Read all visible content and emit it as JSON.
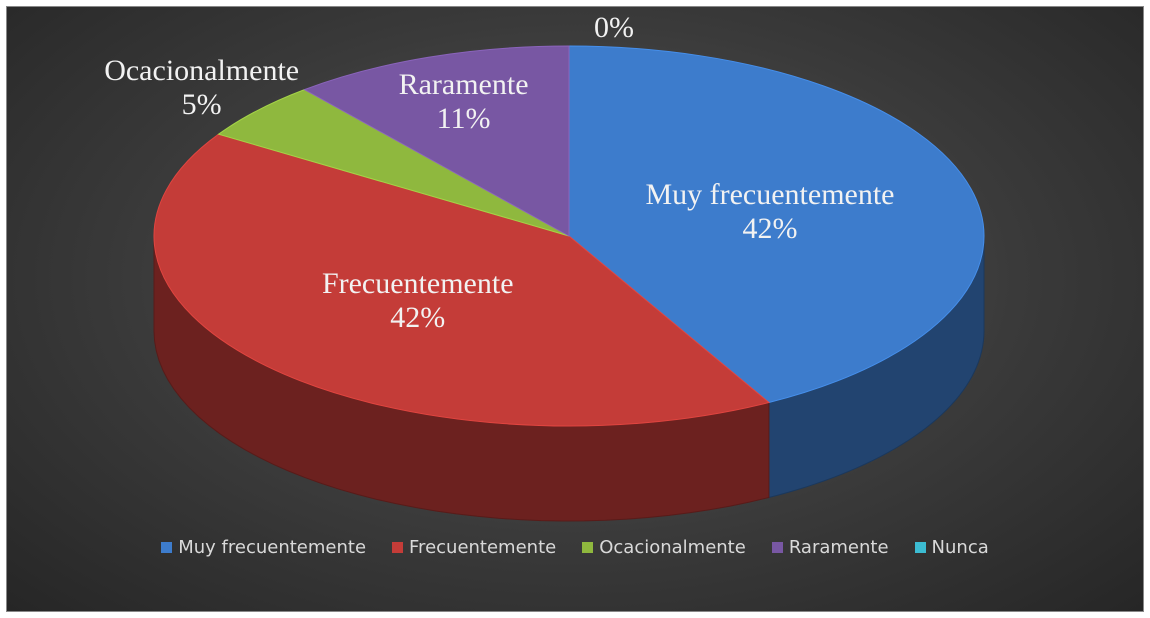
{
  "chart_data": {
    "type": "pie",
    "categories": [
      "Muy frecuentemente",
      "Frecuentemente",
      "Ocacionalmente",
      "Raramente",
      "Nunca"
    ],
    "values": [
      42,
      42,
      5,
      11,
      0
    ],
    "value_labels": [
      "42%",
      "42%",
      "5%",
      "11%",
      "0%"
    ],
    "colors": [
      "#3d7ccc",
      "#c43c38",
      "#8fb83e",
      "#7857a3",
      "#3cbcd2"
    ],
    "legend": "bottom"
  }
}
